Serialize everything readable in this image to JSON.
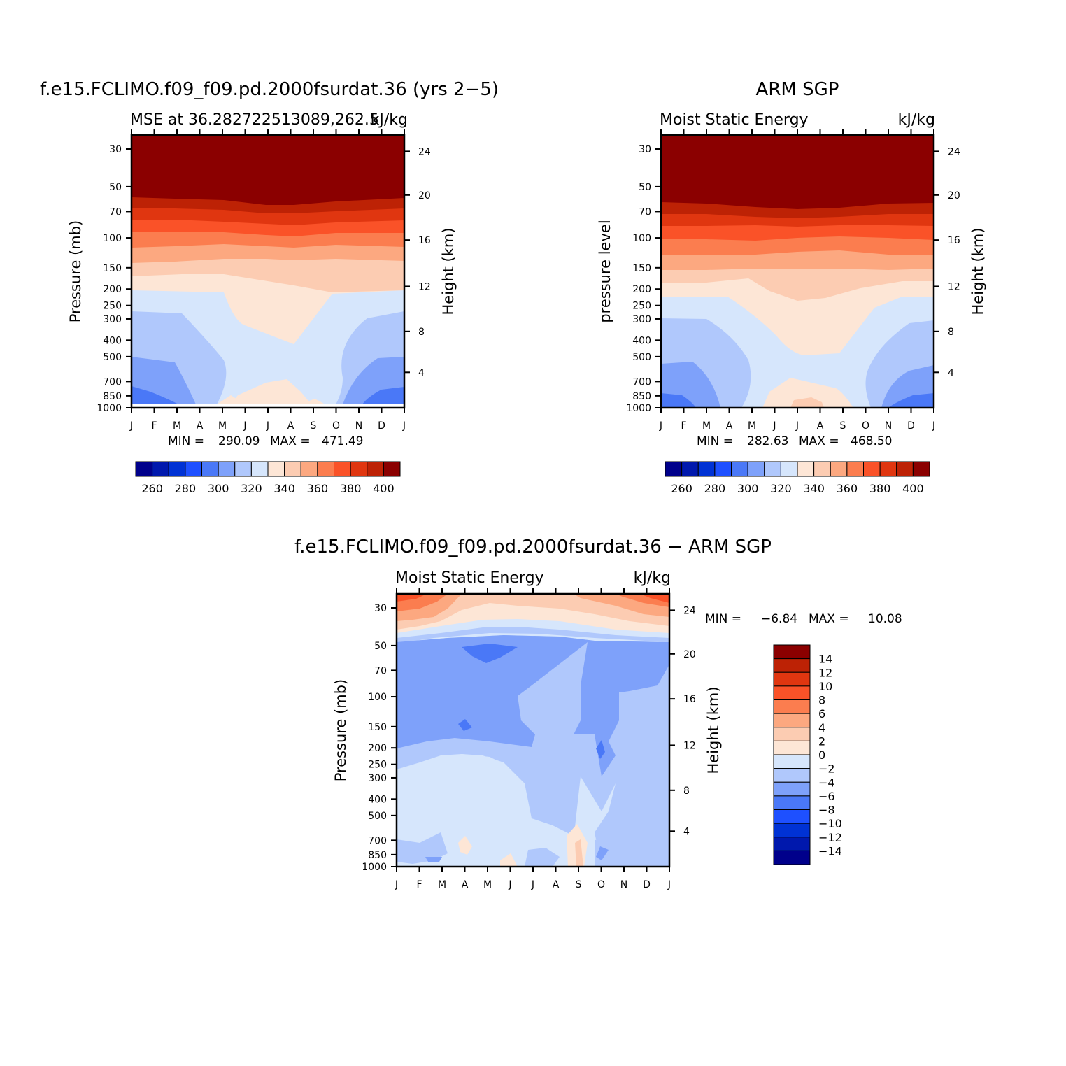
{
  "chart_data": [
    {
      "type": "heatmap",
      "title": "f.e15.FCLIMO.f09_f09.pd.2000fsurdat.36 (yrs 2−5)",
      "left_subtitle": "MSE at 36.282722513089,262.5",
      "right_subtitle": "kJ/kg",
      "ylabel": "Pressure (mb)",
      "ylabel_right": "Height (km)",
      "x_ticks": [
        "J",
        "F",
        "M",
        "A",
        "M",
        "J",
        "J",
        "A",
        "S",
        "O",
        "N",
        "D",
        "J"
      ],
      "y_ticks": [
        "30",
        "50",
        "70",
        "100",
        "150",
        "200",
        "250",
        "300",
        "400",
        "500",
        "700",
        "850",
        "1000"
      ],
      "y_ticks_right": [
        "24",
        "20",
        "16",
        "12",
        "8",
        "4"
      ],
      "min_label": "MIN =",
      "min_value": "290.09",
      "max_label": "MAX =",
      "max_value": "471.49",
      "colorbar_labels": [
        "260",
        "280",
        "300",
        "320",
        "340",
        "360",
        "380",
        "400"
      ],
      "colors": [
        "#00008b",
        "#0018ad",
        "#0032d4",
        "#1e50ff",
        "#4a78f7",
        "#7ea1fa",
        "#b0c8fc",
        "#d6e6fc",
        "#fde6d6",
        "#fcccb2",
        "#fca880",
        "#fb7d4f",
        "#fa5228",
        "#e03610",
        "#bd2205",
        "#8b0000"
      ]
    },
    {
      "type": "heatmap",
      "title": "ARM SGP",
      "left_subtitle": "Moist Static Energy",
      "right_subtitle": "kJ/kg",
      "ylabel": "pressure level",
      "ylabel_right": "Height (km)",
      "x_ticks": [
        "J",
        "F",
        "M",
        "A",
        "M",
        "J",
        "J",
        "A",
        "S",
        "O",
        "N",
        "D",
        "J"
      ],
      "y_ticks": [
        "30",
        "50",
        "70",
        "100",
        "150",
        "200",
        "250",
        "300",
        "400",
        "500",
        "700",
        "850",
        "1000"
      ],
      "y_ticks_right": [
        "24",
        "20",
        "16",
        "12",
        "8",
        "4"
      ],
      "min_label": "MIN =",
      "min_value": "282.63",
      "max_label": "MAX =",
      "max_value": "468.50",
      "colorbar_labels": [
        "260",
        "280",
        "300",
        "320",
        "340",
        "360",
        "380",
        "400"
      ]
    },
    {
      "type": "heatmap",
      "title": "f.e15.FCLIMO.f09_f09.pd.2000fsurdat.36 − ARM SGP",
      "left_subtitle": "Moist Static Energy",
      "right_subtitle": "kJ/kg",
      "ylabel": "Pressure (mb)",
      "ylabel_right": "Height (km)",
      "x_ticks": [
        "J",
        "F",
        "M",
        "A",
        "M",
        "J",
        "J",
        "A",
        "S",
        "O",
        "N",
        "D",
        "J"
      ],
      "y_ticks": [
        "30",
        "50",
        "70",
        "100",
        "150",
        "200",
        "250",
        "300",
        "400",
        "500",
        "700",
        "850",
        "1000"
      ],
      "y_ticks_right": [
        "24",
        "20",
        "16",
        "12",
        "8",
        "4"
      ],
      "min_label": "MIN =",
      "min_value": "−6.84",
      "max_label": "MAX =",
      "max_value": "10.08",
      "colorbar_labels": [
        "14",
        "12",
        "10",
        "8",
        "6",
        "4",
        "2",
        "0",
        "−2",
        "−4",
        "−6",
        "−8",
        "−10",
        "−12",
        "−14"
      ],
      "colors": [
        "#8b0000",
        "#bd2205",
        "#e03610",
        "#fa5228",
        "#fb7d4f",
        "#fca880",
        "#fcccb2",
        "#fde6d6",
        "#d6e6fc",
        "#b0c8fc",
        "#7ea1fa",
        "#4a78f7",
        "#1e50ff",
        "#0032d4",
        "#0018ad",
        "#00008b"
      ]
    }
  ]
}
